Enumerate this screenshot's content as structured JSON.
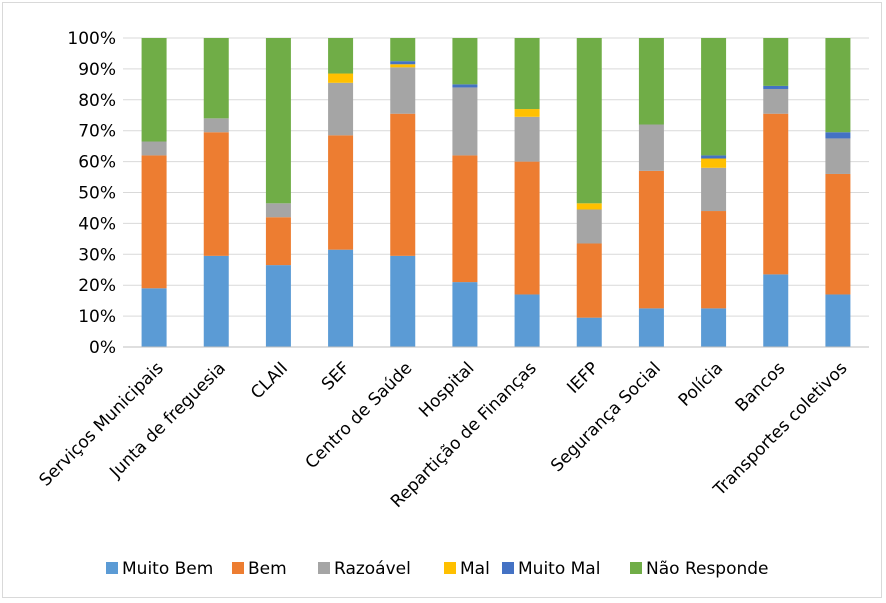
{
  "chart_data": {
    "type": "bar",
    "stacked": "percent",
    "title": "",
    "xlabel": "",
    "ylabel": "",
    "ylim": [
      0,
      100
    ],
    "yticks": [
      "0%",
      "10%",
      "20%",
      "30%",
      "40%",
      "50%",
      "60%",
      "70%",
      "80%",
      "90%",
      "100%"
    ],
    "grid": "horizontal",
    "legend_position": "bottom",
    "categories": [
      "Serviços Municipais",
      "Junta de freguesia",
      "CLAII",
      "SEF",
      "Centro de Saúde",
      "Hospital",
      "Repartição de Finanças",
      "IEFP",
      "Segurança Social",
      "Polícia",
      "Bancos",
      "Transportes coletivos"
    ],
    "series": [
      {
        "name": "Muito Bem",
        "color": "#5b9bd5",
        "values": [
          19,
          29.5,
          26.5,
          31.5,
          29.5,
          21,
          17,
          9.5,
          12.5,
          12.5,
          23.5,
          17
        ]
      },
      {
        "name": "Bem",
        "color": "#ed7d31",
        "values": [
          43,
          40,
          15.5,
          37,
          46,
          41,
          43,
          24,
          44.5,
          31.5,
          52,
          39
        ]
      },
      {
        "name": "Razoável",
        "color": "#a5a5a5",
        "values": [
          4.5,
          4.5,
          4.5,
          17,
          15,
          22,
          14.5,
          11,
          15,
          14,
          8,
          11.5
        ]
      },
      {
        "name": "Mal",
        "color": "#ffc000",
        "values": [
          0,
          0,
          0,
          3,
          1,
          0,
          2.5,
          2,
          0,
          3,
          0,
          0
        ]
      },
      {
        "name": "Muito Mal",
        "color": "#4472c4",
        "values": [
          0,
          0,
          0,
          0,
          1,
          1,
          0,
          0,
          0,
          1,
          1,
          2
        ]
      },
      {
        "name": "Não Responde",
        "color": "#70ad47",
        "values": [
          33.5,
          26,
          53.5,
          11.5,
          7.5,
          15,
          23,
          53.5,
          28,
          38,
          15.5,
          30.5
        ]
      }
    ]
  }
}
